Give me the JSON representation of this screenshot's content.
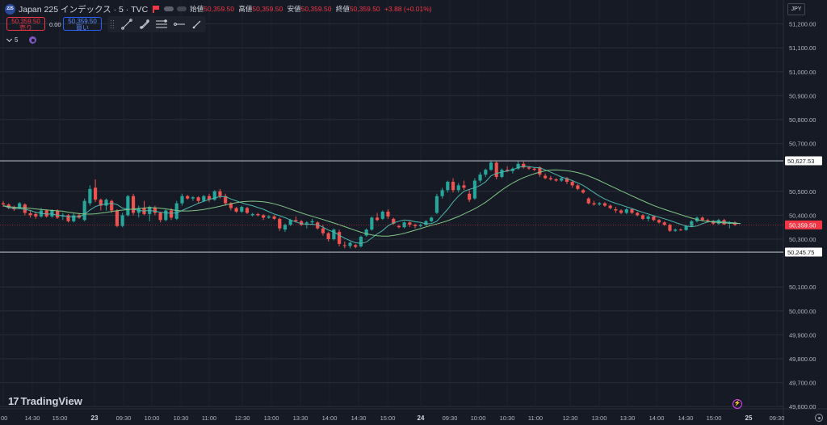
{
  "header": {
    "logo_text": "225",
    "symbol": "Japan 225 インデックス · 5 · TVC",
    "open_label": "始値",
    "open": "50,359.50",
    "high_label": "高値",
    "high": "50,359.50",
    "low_label": "安値",
    "low": "50,359.50",
    "close_label": "終値",
    "close": "50,359.50",
    "change": "+3.88 (+0.01%)"
  },
  "trade": {
    "sell_price": "50,359.50",
    "sell_label": "売り",
    "spread": "0.00",
    "buy_price": "50,359.50",
    "buy_label": "買い"
  },
  "drawing_tools": [
    "trend-line-icon",
    "fib-retracement-icon",
    "parallel-channel-icon",
    "horizontal-ray-icon",
    "brush-icon"
  ],
  "indicator": {
    "label": "5"
  },
  "currency": "JPY",
  "branding": "TradingView",
  "colors": {
    "up": "#26a69a",
    "down": "#ef5350",
    "ma_fast": "#4db6ac",
    "ma_slow": "#81c784",
    "hline": "#b2b5be",
    "current_price": "#f23645",
    "grid": "#2a2e39"
  },
  "chart_data": {
    "type": "candlestick",
    "y_ticks": [
      "51,200.00",
      "51,100.00",
      "51,000.00",
      "50,900.00",
      "50,800.00",
      "50,700.00",
      "50,500.00",
      "50,400.00",
      "50,300.00",
      "50,100.00",
      "50,000.00",
      "49,900.00",
      "49,800.00",
      "49,700.00",
      "49,600.00"
    ],
    "y_tick_values": [
      51200,
      51100,
      51000,
      50900,
      50800,
      50700,
      50500,
      50400,
      50300,
      50100,
      50000,
      49900,
      49800,
      49700,
      49600
    ],
    "ylim": [
      49580,
      51230
    ],
    "x_ticks": [
      "00",
      "14:30",
      "15:00",
      "23",
      "09:30",
      "10:00",
      "10:30",
      "11:00",
      "12:30",
      "13:00",
      "13:30",
      "14:00",
      "14:30",
      "15:00",
      "24",
      "09:30",
      "10:00",
      "10:30",
      "11:00",
      "12:30",
      "13:00",
      "13:30",
      "14:00",
      "14:30",
      "15:00",
      "25",
      "09:30"
    ],
    "x_ticks_bold": [
      "23",
      "24",
      "25"
    ],
    "horizontal_lines": [
      {
        "value": 50627.53,
        "label": "50,627.53"
      },
      {
        "value": 50245.75,
        "label": "50,245.75"
      }
    ],
    "current_price": {
      "value": 50359.5,
      "label": "50,359.50"
    },
    "candles": [
      [
        50450,
        50460,
        50435,
        50445
      ],
      [
        50445,
        50450,
        50425,
        50430
      ],
      [
        50432,
        50440,
        50418,
        50425
      ],
      [
        50430,
        50455,
        50425,
        50450
      ],
      [
        50445,
        50450,
        50400,
        50410
      ],
      [
        50408,
        50420,
        50390,
        50400
      ],
      [
        50405,
        50415,
        50385,
        50395
      ],
      [
        50395,
        50430,
        50390,
        50420
      ],
      [
        50420,
        50425,
        50390,
        50395
      ],
      [
        50395,
        50425,
        50390,
        50420
      ],
      [
        50420,
        50425,
        50385,
        50390
      ],
      [
        50395,
        50410,
        50380,
        50400
      ],
      [
        50400,
        50405,
        50370,
        50375
      ],
      [
        50375,
        50410,
        50370,
        50400
      ],
      [
        50400,
        50410,
        50385,
        50390
      ],
      [
        50380,
        50470,
        50375,
        50460
      ],
      [
        50450,
        50525,
        50440,
        50510
      ],
      [
        50515,
        50550,
        50455,
        50465
      ],
      [
        50465,
        50470,
        50420,
        50440
      ],
      [
        50440,
        50470,
        50420,
        50465
      ],
      [
        50460,
        50465,
        50410,
        50420
      ],
      [
        50420,
        50425,
        50350,
        50355
      ],
      [
        50355,
        50410,
        50350,
        50400
      ],
      [
        50400,
        50485,
        50395,
        50480
      ],
      [
        50480,
        50490,
        50400,
        50410
      ],
      [
        50410,
        50440,
        50390,
        50430
      ],
      [
        50430,
        50460,
        50400,
        50405
      ],
      [
        50405,
        50440,
        50375,
        50435
      ],
      [
        50430,
        50440,
        50400,
        50410
      ],
      [
        50410,
        50415,
        50370,
        50380
      ],
      [
        50380,
        50425,
        50375,
        50420
      ],
      [
        50420,
        50430,
        50380,
        50390
      ],
      [
        50385,
        50460,
        50380,
        50450
      ],
      [
        50450,
        50490,
        50440,
        50480
      ],
      [
        50480,
        50485,
        50465,
        50470
      ],
      [
        50470,
        50480,
        50460,
        50475
      ],
      [
        50475,
        50480,
        50450,
        50460
      ],
      [
        50460,
        50485,
        50455,
        50480
      ],
      [
        50480,
        50490,
        50455,
        50465
      ],
      [
        50465,
        50505,
        50460,
        50500
      ],
      [
        50500,
        50510,
        50470,
        50480
      ],
      [
        50480,
        50490,
        50440,
        50450
      ],
      [
        50450,
        50455,
        50420,
        50430
      ],
      [
        50430,
        50435,
        50410,
        50415
      ],
      [
        50415,
        50440,
        50410,
        50435
      ],
      [
        50430,
        50435,
        50405,
        50410
      ],
      [
        50400,
        50410,
        50395,
        50405
      ],
      [
        50405,
        50410,
        50395,
        50400
      ],
      [
        50400,
        50405,
        50380,
        50390
      ],
      [
        50390,
        50400,
        50385,
        50395
      ],
      [
        50395,
        50400,
        50380,
        50385
      ],
      [
        50385,
        50390,
        50335,
        50345
      ],
      [
        50340,
        50365,
        50330,
        50360
      ],
      [
        50360,
        50385,
        50355,
        50380
      ],
      [
        50380,
        50395,
        50370,
        50375
      ],
      [
        50375,
        50380,
        50355,
        50360
      ],
      [
        50365,
        50375,
        50345,
        50370
      ],
      [
        50370,
        50385,
        50360,
        50375
      ],
      [
        50370,
        50375,
        50340,
        50345
      ],
      [
        50345,
        50360,
        50315,
        50325
      ],
      [
        50325,
        50330,
        50290,
        50300
      ],
      [
        50300,
        50345,
        50295,
        50340
      ],
      [
        50330,
        50340,
        50270,
        50280
      ],
      [
        50275,
        50290,
        50262,
        50272
      ],
      [
        50272,
        50290,
        50262,
        50285
      ],
      [
        50275,
        50280,
        50262,
        50268
      ],
      [
        50270,
        50315,
        50265,
        50310
      ],
      [
        50315,
        50345,
        50310,
        50340
      ],
      [
        50340,
        50395,
        50335,
        50390
      ],
      [
        50390,
        50410,
        50375,
        50380
      ],
      [
        50385,
        50420,
        50380,
        50415
      ],
      [
        50415,
        50425,
        50385,
        50395
      ],
      [
        50385,
        50390,
        50360,
        50365
      ],
      [
        50355,
        50360,
        50345,
        50350
      ],
      [
        50350,
        50375,
        50345,
        50370
      ],
      [
        50370,
        50375,
        50350,
        50360
      ],
      [
        50360,
        50365,
        50345,
        50355
      ],
      [
        50355,
        50365,
        50350,
        50360
      ],
      [
        50360,
        50380,
        50355,
        50375
      ],
      [
        50375,
        50395,
        50370,
        50390
      ],
      [
        50410,
        50490,
        50405,
        50480
      ],
      [
        50480,
        50515,
        50470,
        50505
      ],
      [
        50505,
        50545,
        50495,
        50540
      ],
      [
        50540,
        50555,
        50495,
        50505
      ],
      [
        50505,
        50535,
        50495,
        50525
      ],
      [
        50525,
        50545,
        50505,
        50515
      ],
      [
        50490,
        50505,
        50455,
        50465
      ],
      [
        50470,
        50555,
        50465,
        50545
      ],
      [
        50545,
        50580,
        50535,
        50570
      ],
      [
        50570,
        50595,
        50560,
        50590
      ],
      [
        50590,
        50630,
        50585,
        50620
      ],
      [
        50620,
        50625,
        50550,
        50560
      ],
      [
        50560,
        50595,
        50555,
        50590
      ],
      [
        50590,
        50605,
        50580,
        50585
      ],
      [
        50585,
        50600,
        50575,
        50595
      ],
      [
        50595,
        50627,
        50590,
        50615
      ],
      [
        50615,
        50625,
        50595,
        50600
      ],
      [
        50600,
        50605,
        50590,
        50595
      ],
      [
        50595,
        50600,
        50585,
        50590
      ],
      [
        50600,
        50605,
        50560,
        50570
      ],
      [
        50565,
        50575,
        50550,
        50555
      ],
      [
        50555,
        50565,
        50545,
        50550
      ],
      [
        50550,
        50555,
        50540,
        50545
      ],
      [
        50545,
        50560,
        50540,
        50555
      ],
      [
        50555,
        50560,
        50530,
        50540
      ],
      [
        50540,
        50545,
        50515,
        50525
      ],
      [
        50525,
        50530,
        50505,
        50510
      ],
      [
        50505,
        50510,
        50490,
        50495
      ],
      [
        50470,
        50475,
        50445,
        50450
      ],
      [
        50450,
        50460,
        50440,
        50445
      ],
      [
        50445,
        50455,
        50440,
        50450
      ],
      [
        50450,
        50455,
        50435,
        50440
      ],
      [
        50440,
        50445,
        50425,
        50430
      ],
      [
        50425,
        50435,
        50410,
        50420
      ],
      [
        50420,
        50425,
        50405,
        50410
      ],
      [
        50410,
        50430,
        50405,
        50425
      ],
      [
        50425,
        50430,
        50405,
        50410
      ],
      [
        50410,
        50415,
        50395,
        50400
      ],
      [
        50400,
        50405,
        50380,
        50385
      ],
      [
        50385,
        50400,
        50375,
        50395
      ],
      [
        50395,
        50400,
        50375,
        50380
      ],
      [
        50380,
        50385,
        50365,
        50370
      ],
      [
        50370,
        50375,
        50355,
        50360
      ],
      [
        50360,
        50365,
        50330,
        50335
      ],
      [
        50335,
        50345,
        50330,
        50340
      ],
      [
        50340,
        50345,
        50335,
        50338
      ],
      [
        50338,
        50360,
        50335,
        50355
      ],
      [
        50355,
        50380,
        50350,
        50375
      ],
      [
        50375,
        50395,
        50370,
        50390
      ],
      [
        50390,
        50395,
        50375,
        50380
      ],
      [
        50380,
        50385,
        50370,
        50378
      ],
      [
        50375,
        50380,
        50360,
        50365
      ],
      [
        50365,
        50385,
        50360,
        50380
      ],
      [
        50380,
        50385,
        50360,
        50362
      ],
      [
        50365,
        50375,
        50345,
        50370
      ],
      [
        50370,
        50375,
        50355,
        50360
      ]
    ],
    "ma_fast": [
      50440,
      50432,
      50428,
      50428,
      50425,
      50420,
      50412,
      50408,
      50405,
      50405,
      50400,
      50398,
      50394,
      50394,
      50394,
      50404,
      50422,
      50436,
      50444,
      50447,
      50450,
      50445,
      50430,
      50425,
      50425,
      50420,
      50418,
      50420,
      50417,
      50412,
      50410,
      50408,
      50410,
      50420,
      50430,
      50440,
      50450,
      50458,
      50466,
      50472,
      50478,
      50478,
      50468,
      50460,
      50452,
      50445,
      50440,
      50432,
      50425,
      50415,
      50405,
      50398,
      50390,
      50380,
      50372,
      50365,
      50362,
      50362,
      50360,
      50350,
      50338,
      50330,
      50316,
      50304,
      50294,
      50285,
      50282,
      50288,
      50305,
      50322,
      50336,
      50356,
      50368,
      50375,
      50380,
      50378,
      50373,
      50370,
      50364,
      50365,
      50375,
      50400,
      50425,
      50455,
      50480,
      50500,
      50508,
      50515,
      50525,
      50540,
      50565,
      50575,
      50580,
      50585,
      50590,
      50600,
      50605,
      50603,
      50600,
      50598,
      50590,
      50580,
      50570,
      50560,
      50553,
      50545,
      50535,
      50525,
      50510,
      50495,
      50480,
      50468,
      50458,
      50450,
      50443,
      50435,
      50428,
      50420,
      50412,
      50405,
      50398,
      50392,
      50385,
      50378,
      50370,
      50362,
      50355,
      50352,
      50355,
      50365,
      50372,
      50375,
      50374,
      50372,
      50370,
      50368,
      50365
    ]
  }
}
